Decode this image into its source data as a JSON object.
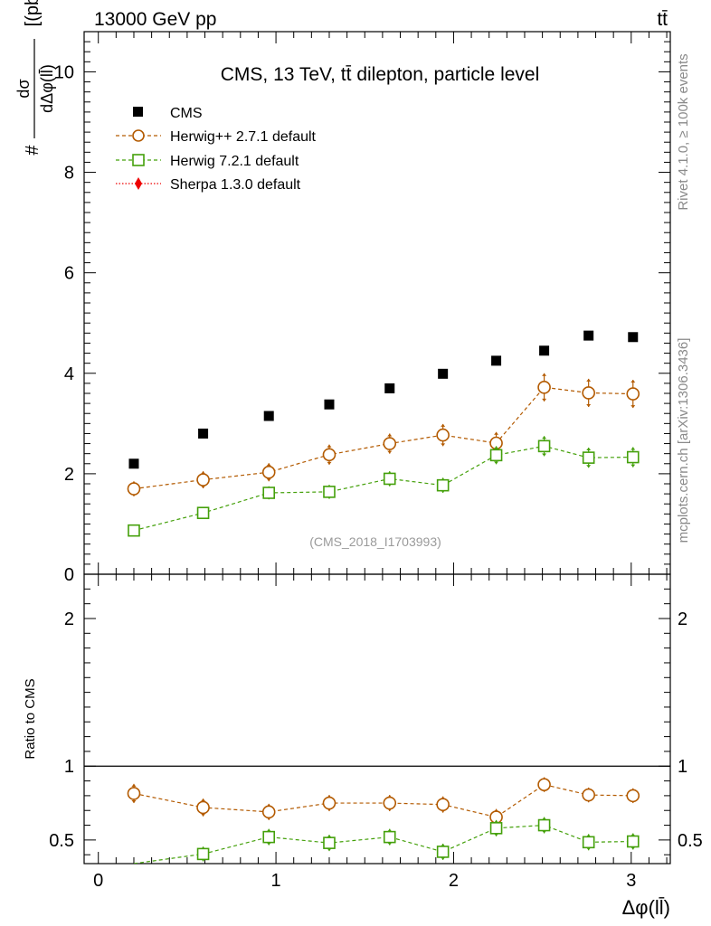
{
  "header": {
    "energy_label": "13000 GeV pp",
    "process_label": "tt̄"
  },
  "side_labels": {
    "rivet": "Rivet 4.1.0, ≥ 100k events",
    "mcplots": "mcplots.cern.ch [arXiv:1306.3436]"
  },
  "chart_data": {
    "type": "scatter",
    "title": "CMS, 13 TeV, tt̄ dilepton, particle level",
    "watermark": "(CMS_2018_I1703993)",
    "xlabel": "Δφ(ll̄)",
    "ylabel_numerator": "dσ",
    "ylabel_denominator": "dΔφ(ll̄)",
    "ylabel_prefix": "#",
    "ylabel_unit": "[(pb)]",
    "ratio_ylabel": "Ratio to CMS",
    "xlim": [
      -0.08,
      3.22
    ],
    "ylim": [
      0,
      10.8
    ],
    "ratio_ylim": [
      0.34,
      2.3
    ],
    "x_ticks": [
      0,
      1,
      2,
      3
    ],
    "x_tick_labels": [
      "0",
      "1",
      "2",
      "3"
    ],
    "y_ticks": [
      0,
      2,
      4,
      6,
      8,
      10
    ],
    "y_tick_labels": [
      "0",
      "2",
      "4",
      "6",
      "8",
      "10"
    ],
    "ratio_ticks": [
      0.5,
      1,
      2
    ],
    "ratio_tick_labels": [
      "0.5",
      "1",
      "2"
    ],
    "x": [
      0.2,
      0.59,
      0.96,
      1.3,
      1.64,
      1.94,
      2.24,
      2.51,
      2.76,
      3.01
    ],
    "series": [
      {
        "name": "CMS",
        "style": "data",
        "color": "#000000",
        "values": [
          2.2,
          2.8,
          3.15,
          3.38,
          3.7,
          3.99,
          4.25,
          4.45,
          4.75,
          4.72
        ]
      },
      {
        "name": "Herwig++ 2.7.1 default",
        "style": "circle",
        "color": "#b35a00",
        "values": [
          1.7,
          1.88,
          2.03,
          2.38,
          2.6,
          2.77,
          2.61,
          3.72,
          3.61,
          3.59
        ],
        "errors": [
          0.15,
          0.17,
          0.18,
          0.2,
          0.2,
          0.22,
          0.22,
          0.28,
          0.28,
          0.28
        ],
        "ratio": [
          0.815,
          0.72,
          0.69,
          0.75,
          0.75,
          0.74,
          0.655,
          0.875,
          0.805,
          0.8
        ],
        "ratio_errors": [
          0.065,
          0.06,
          0.055,
          0.055,
          0.055,
          0.055,
          0.055,
          0.05,
          0.05,
          0.05
        ]
      },
      {
        "name": "Herwig 7.2.1 default",
        "style": "square",
        "color": "#44a00a",
        "values": [
          0.87,
          1.22,
          1.62,
          1.64,
          1.9,
          1.77,
          2.37,
          2.55,
          2.32,
          2.33
        ],
        "errors": [
          0.07,
          0.1,
          0.13,
          0.14,
          0.15,
          0.15,
          0.18,
          0.2,
          0.2,
          0.2
        ],
        "ratio": [
          0.34,
          0.405,
          0.52,
          0.48,
          0.52,
          0.42,
          0.58,
          0.6,
          0.485,
          0.49
        ],
        "ratio_errors": [
          0.05,
          0.05,
          0.055,
          0.055,
          0.055,
          0.055,
          0.055,
          0.055,
          0.055,
          0.055
        ]
      },
      {
        "name": "Sherpa 1.3.0 default",
        "style": "diamond",
        "color": "#ee0000",
        "values": [],
        "errors": [],
        "ratio": [],
        "ratio_errors": []
      }
    ]
  }
}
